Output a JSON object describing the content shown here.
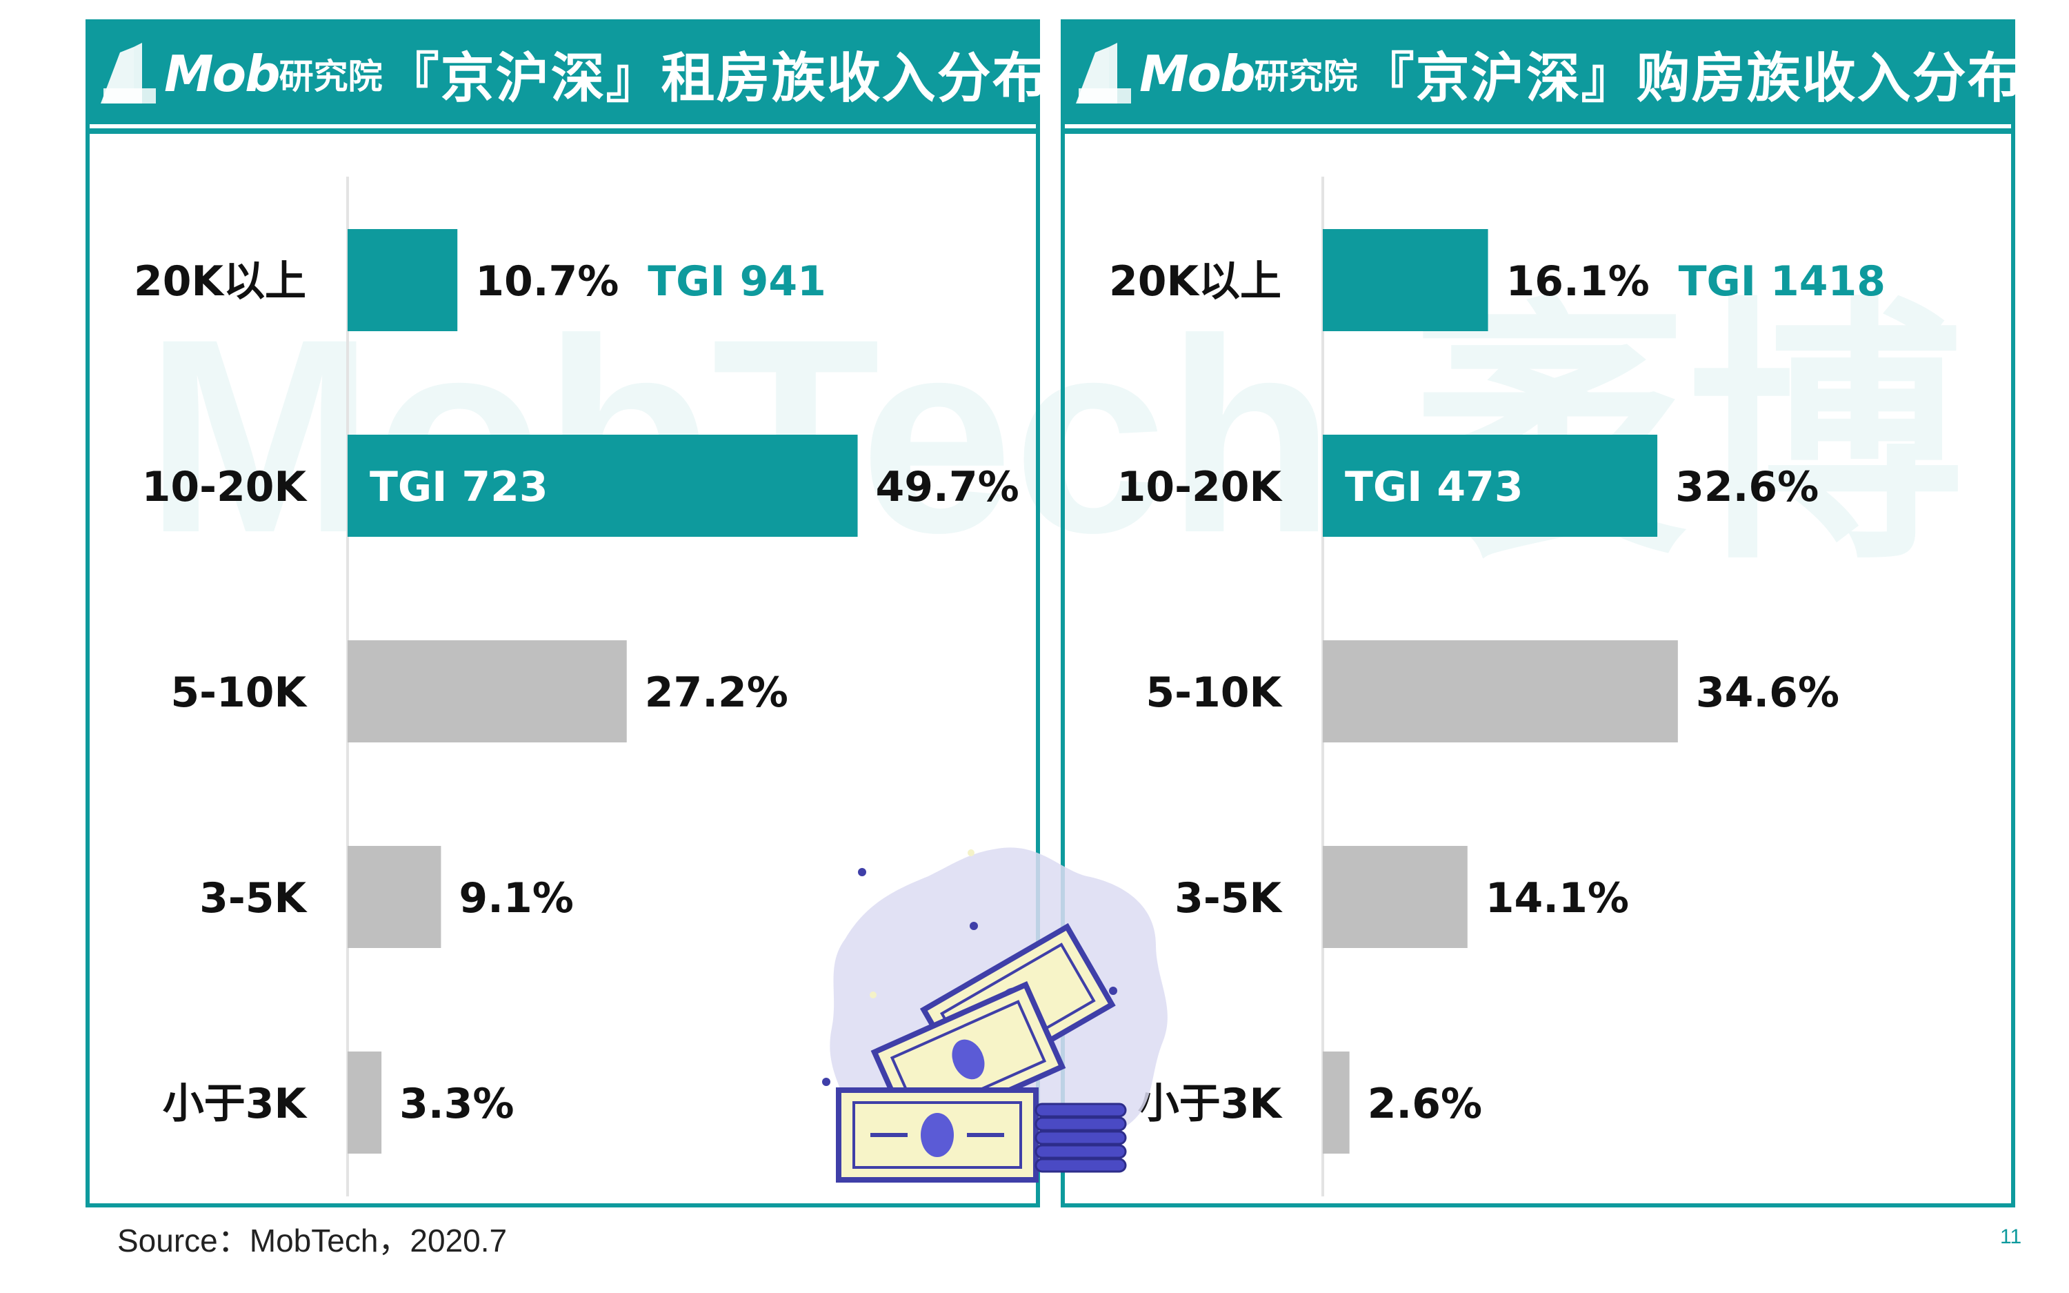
{
  "colors": {
    "accent": "#0e9a9d",
    "highlight_bar": "#0e9a9d",
    "base_bar": "#bfbfbf",
    "tgi_text": "#0e9a9d",
    "label_text": "#111111"
  },
  "watermark": {
    "text": "MobTech 袤博"
  },
  "brand": {
    "name": "Mob",
    "sub": "研究院"
  },
  "panels": [
    {
      "title": "『京沪深』租房族收入分布"
    },
    {
      "title": "『京沪深』购房族收入分布"
    }
  ],
  "chart_data": [
    {
      "type": "bar",
      "orientation": "horizontal",
      "title": "『京沪深』租房族收入分布",
      "xlim": [
        0,
        50
      ],
      "categories": [
        "20K以上",
        "10-20K",
        "5-10K",
        "3-5K",
        "小于3K"
      ],
      "values": [
        10.7,
        49.7,
        27.2,
        9.1,
        3.3
      ],
      "value_labels": [
        "10.7%",
        "49.7%",
        "27.2%",
        "9.1%",
        "3.3%"
      ],
      "highlighted": [
        true,
        true,
        false,
        false,
        false
      ],
      "tgi": [
        "TGI 941",
        "TGI 723",
        "",
        "",
        ""
      ]
    },
    {
      "type": "bar",
      "orientation": "horizontal",
      "title": "『京沪深』购房族收入分布",
      "xlim": [
        0,
        50
      ],
      "categories": [
        "20K以上",
        "10-20K",
        "5-10K",
        "3-5K",
        "小于3K"
      ],
      "values": [
        16.1,
        32.6,
        34.6,
        14.1,
        2.6
      ],
      "value_labels": [
        "16.1%",
        "32.6%",
        "34.6%",
        "14.1%",
        "2.6%"
      ],
      "highlighted": [
        true,
        true,
        false,
        false,
        false
      ],
      "tgi": [
        "TGI 1418",
        "TGI 473",
        "",
        "",
        ""
      ]
    }
  ],
  "footer": {
    "source": "Source：MobTech，2020.7",
    "page_number": "11"
  },
  "icons": {
    "logo": "building-logo-icon",
    "money": "money-stack-icon"
  }
}
